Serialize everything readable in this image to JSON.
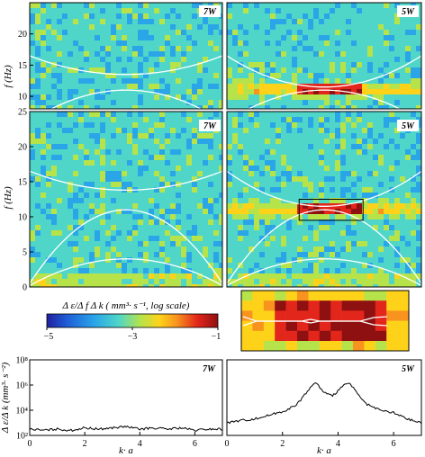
{
  "chart_data": [
    {
      "type": "heatmap",
      "panel_label": "7W",
      "ylabel": "f (Hz)",
      "ylim": [
        8,
        25
      ],
      "yticks": [
        "10",
        "15",
        "20"
      ],
      "curves": [
        {
          "kind": "upper",
          "f_min": 13.5,
          "f_edge": 16.5
        },
        {
          "kind": "lower",
          "f_max": 11,
          "f_edge": 6
        }
      ]
    },
    {
      "type": "heatmap",
      "panel_label": "5W",
      "ylim": [
        8,
        25
      ],
      "band_f": 11,
      "curves": [
        {
          "kind": "upper",
          "f_min": 11.5,
          "f_edge": 16.5
        },
        {
          "kind": "lower",
          "f_max": 11,
          "f_edge": 6
        }
      ]
    },
    {
      "type": "heatmap",
      "panel_label": "7W",
      "ylabel": "f (Hz)",
      "ylim": [
        0,
        25
      ],
      "yticks": [
        "0",
        "5",
        "10",
        "15",
        "20",
        "25"
      ],
      "curves": [
        {
          "kind": "upper",
          "f_min": 13.8,
          "f_edge": 16.5
        },
        {
          "kind": "dome",
          "f_max": 11,
          "f_edge": 0.5
        },
        {
          "kind": "dome",
          "f_max": 4,
          "f_edge": 0.2
        }
      ]
    },
    {
      "type": "heatmap",
      "panel_label": "5W",
      "ylim": [
        0,
        25
      ],
      "band_f": 11,
      "highlight_box_f": [
        9.5,
        12.5
      ],
      "highlight_box_k": [
        2.6,
        4.9
      ],
      "curves": [
        {
          "kind": "upper",
          "f_min": 11.5,
          "f_edge": 16.5
        },
        {
          "kind": "dome",
          "f_max": 11,
          "f_edge": 0.5
        },
        {
          "kind": "dome",
          "f_max": 4,
          "f_edge": 0.2
        }
      ]
    },
    {
      "type": "line",
      "panel_label": "7W",
      "xlabel": "k· a",
      "ylabel": "Δ ε/Δ k (mm³· s⁻²)",
      "xlim": [
        0,
        7
      ],
      "xticks": [
        "0",
        "2",
        "4",
        "6"
      ],
      "y_log": true,
      "yticks": [
        "10²",
        "10⁴",
        "10⁶",
        "10⁸"
      ],
      "x": [
        0,
        0.5,
        1,
        1.5,
        2,
        2.5,
        3,
        3.5,
        4,
        4.5,
        5,
        5.5,
        6,
        6.5,
        7
      ],
      "y_log10": [
        2.5,
        2.4,
        2.5,
        2.4,
        2.6,
        2.5,
        2.6,
        2.7,
        2.5,
        2.6,
        2.5,
        2.6,
        2.4,
        2.5,
        2.5
      ]
    },
    {
      "type": "line",
      "panel_label": "5W",
      "xlabel": "k· a",
      "xlim": [
        0,
        7
      ],
      "xticks": [
        "0",
        "2",
        "4",
        "6"
      ],
      "y_log": true,
      "x": [
        0,
        0.5,
        1,
        1.5,
        2,
        2.5,
        3,
        3.2,
        3.5,
        3.8,
        4.1,
        4.4,
        4.7,
        5,
        5.5,
        6,
        6.5,
        7
      ],
      "y_log10": [
        3.0,
        3.2,
        3.3,
        3.6,
        3.9,
        4.4,
        5.8,
        6.2,
        5.4,
        5.1,
        5.8,
        6.2,
        5.3,
        4.5,
        4.0,
        3.8,
        3.3,
        3.0
      ]
    }
  ],
  "colorbar": {
    "title": "Δ ε/Δ f Δ k  ( mm³· s⁻¹, log scale)",
    "tick_labels": [
      "−5",
      "−3",
      "−1"
    ],
    "range": [
      -5,
      -1
    ],
    "colors": [
      "#2020a0",
      "#1f5fd8",
      "#2aa6e8",
      "#4fd6c8",
      "#b7e34a",
      "#ffd21a",
      "#f7931e",
      "#e3261b",
      "#8f1010"
    ]
  }
}
